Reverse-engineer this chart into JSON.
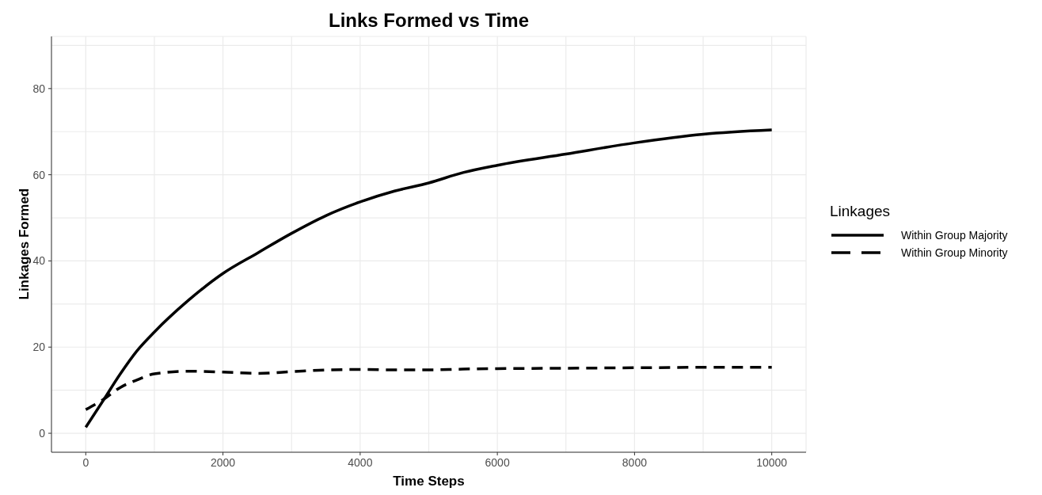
{
  "chart_data": {
    "type": "line",
    "title": "Links Formed vs Time",
    "xlabel": "Time Steps",
    "ylabel": "Linkages Formed",
    "legend_title": "Linkages",
    "legend": "right",
    "grid": true,
    "x": [
      0,
      250,
      500,
      750,
      1000,
      1500,
      2000,
      2500,
      3000,
      3500,
      4000,
      4500,
      5000,
      5500,
      6000,
      7000,
      8000,
      9000,
      10000
    ],
    "series": [
      {
        "name": "Within Group Majority",
        "color": "#000000",
        "line_style": "solid",
        "values": [
          1.4,
          7.5,
          13.7,
          19.2,
          23.5,
          30.9,
          37.1,
          41.8,
          46.4,
          50.5,
          53.7,
          56.2,
          58.1,
          60.5,
          62.2,
          64.8,
          67.4,
          69.4,
          70.4
        ]
      },
      {
        "name": "Within Group Minority",
        "color": "#000000",
        "line_style": "dashed",
        "values": [
          5.5,
          7.8,
          10.6,
          12.4,
          13.8,
          14.4,
          14.2,
          13.9,
          14.3,
          14.7,
          14.8,
          14.7,
          14.7,
          14.9,
          15.0,
          15.1,
          15.2,
          15.3,
          15.3
        ]
      }
    ],
    "xlim": [
      -500,
      10500
    ],
    "ylim": [
      -4.4,
      92.1
    ],
    "xticks": [
      0,
      {
        "value": 1000,
        "label": null
      },
      2000,
      {
        "value": 3000,
        "label": null
      },
      4000,
      {
        "value": 5000,
        "label": null
      },
      6000,
      {
        "value": 7000,
        "label": null
      },
      8000,
      {
        "value": 9000,
        "label": null
      },
      10000
    ],
    "yticks": [
      0,
      {
        "value": 10,
        "label": null
      },
      20,
      {
        "value": 30,
        "label": null
      },
      40,
      {
        "value": 50,
        "label": null
      },
      60,
      {
        "value": 70,
        "label": null
      },
      80,
      {
        "value": 90,
        "label": null
      }
    ]
  }
}
